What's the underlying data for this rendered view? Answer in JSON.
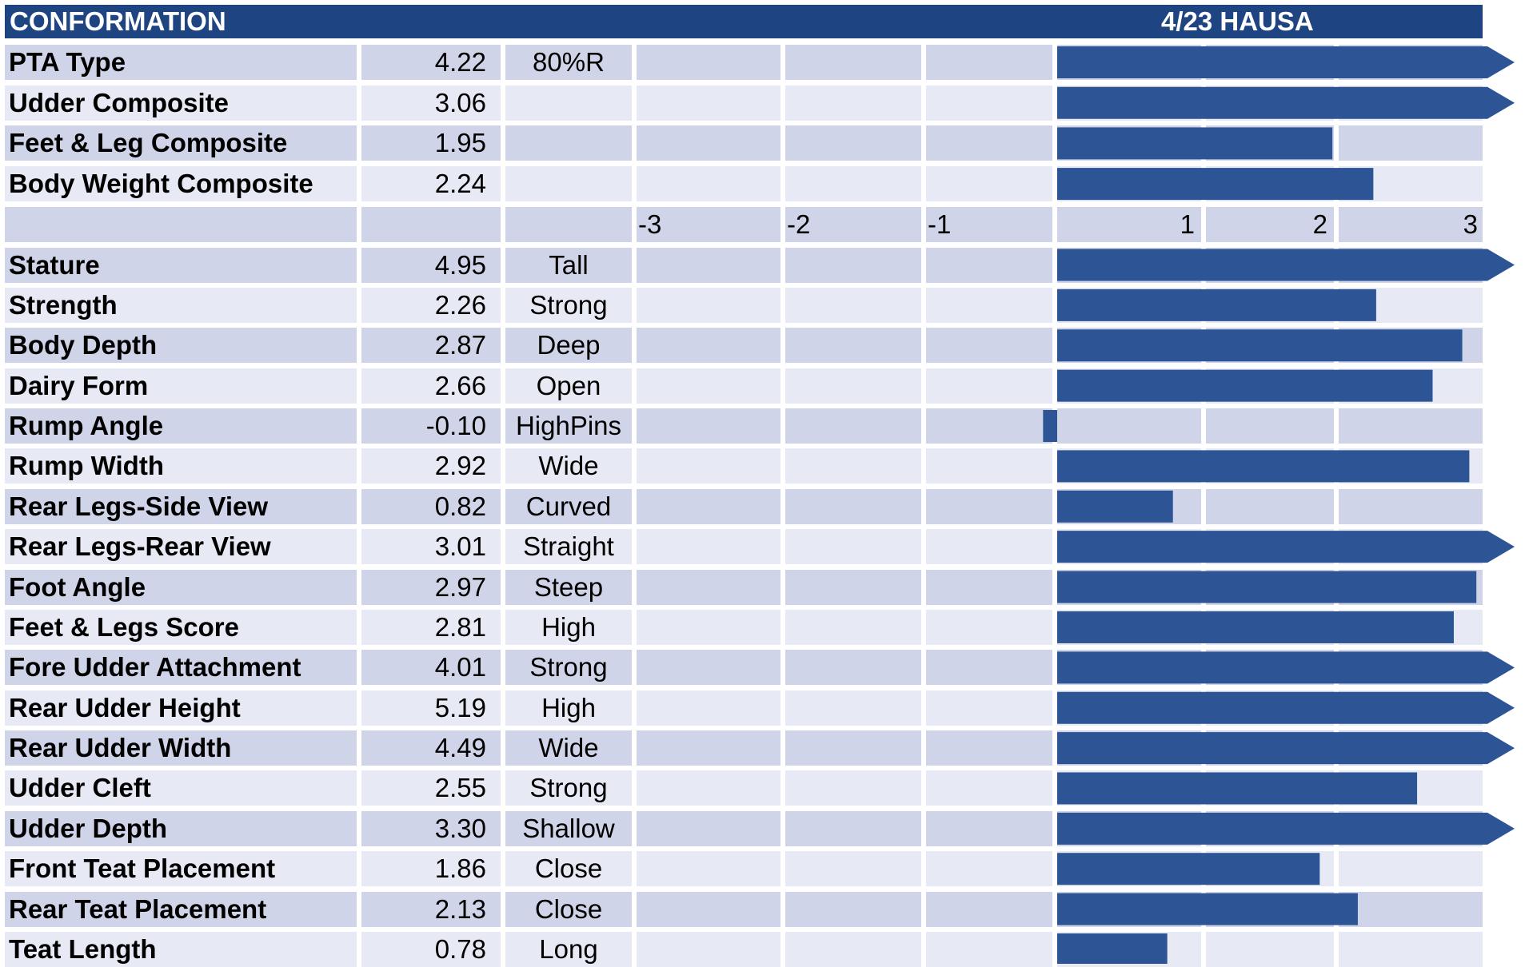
{
  "header": {
    "title": "CONFORMATION",
    "date_label": "4/23 HAUSA"
  },
  "colors": {
    "header_bg": "#1f4482",
    "bar": "#2d5596",
    "row_dark": "#cfd4e9",
    "row_light": "#e7e9f4"
  },
  "axis": {
    "ticks": [
      "-3",
      "-2",
      "-1",
      "1",
      "2",
      "3"
    ]
  },
  "chart_data": {
    "type": "bar",
    "orientation": "horizontal",
    "xlim": [
      -3,
      3
    ],
    "bar_clipped_beyond_axis": true,
    "sections": [
      {
        "rows": [
          {
            "label": "PTA Type",
            "value": 4.22,
            "value_text": "4.22",
            "desc": "80%R"
          },
          {
            "label": "Udder Composite",
            "value": 3.06,
            "value_text": "3.06",
            "desc": ""
          },
          {
            "label": "Feet & Leg Composite",
            "value": 1.95,
            "value_text": "1.95",
            "desc": ""
          },
          {
            "label": "Body Weight Composite",
            "value": 2.24,
            "value_text": "2.24",
            "desc": ""
          }
        ]
      },
      {
        "rows": [
          {
            "label": "Stature",
            "value": 4.95,
            "value_text": "4.95",
            "desc": "Tall"
          },
          {
            "label": "Strength",
            "value": 2.26,
            "value_text": "2.26",
            "desc": "Strong"
          },
          {
            "label": "Body Depth",
            "value": 2.87,
            "value_text": "2.87",
            "desc": "Deep"
          },
          {
            "label": "Dairy Form",
            "value": 2.66,
            "value_text": "2.66",
            "desc": "Open"
          },
          {
            "label": "Rump Angle",
            "value": -0.1,
            "value_text": "-0.10",
            "desc": "HighPins"
          },
          {
            "label": "Rump Width",
            "value": 2.92,
            "value_text": "2.92",
            "desc": "Wide"
          },
          {
            "label": "Rear Legs-Side View",
            "value": 0.82,
            "value_text": "0.82",
            "desc": "Curved"
          },
          {
            "label": "Rear Legs-Rear View",
            "value": 3.01,
            "value_text": "3.01",
            "desc": "Straight"
          },
          {
            "label": "Foot Angle",
            "value": 2.97,
            "value_text": "2.97",
            "desc": "Steep"
          },
          {
            "label": "Feet & Legs Score",
            "value": 2.81,
            "value_text": "2.81",
            "desc": "High"
          },
          {
            "label": "Fore Udder Attachment",
            "value": 4.01,
            "value_text": "4.01",
            "desc": "Strong"
          },
          {
            "label": "Rear Udder Height",
            "value": 5.19,
            "value_text": "5.19",
            "desc": "High"
          },
          {
            "label": "Rear Udder Width",
            "value": 4.49,
            "value_text": "4.49",
            "desc": "Wide"
          },
          {
            "label": "Udder Cleft",
            "value": 2.55,
            "value_text": "2.55",
            "desc": "Strong"
          },
          {
            "label": "Udder Depth",
            "value": 3.3,
            "value_text": "3.30",
            "desc": "Shallow"
          },
          {
            "label": "Front Teat Placement",
            "value": 1.86,
            "value_text": "1.86",
            "desc": "Close"
          },
          {
            "label": "Rear Teat Placement",
            "value": 2.13,
            "value_text": "2.13",
            "desc": "Close"
          },
          {
            "label": "Teat Length",
            "value": 0.78,
            "value_text": "0.78",
            "desc": "Long"
          }
        ]
      }
    ]
  }
}
